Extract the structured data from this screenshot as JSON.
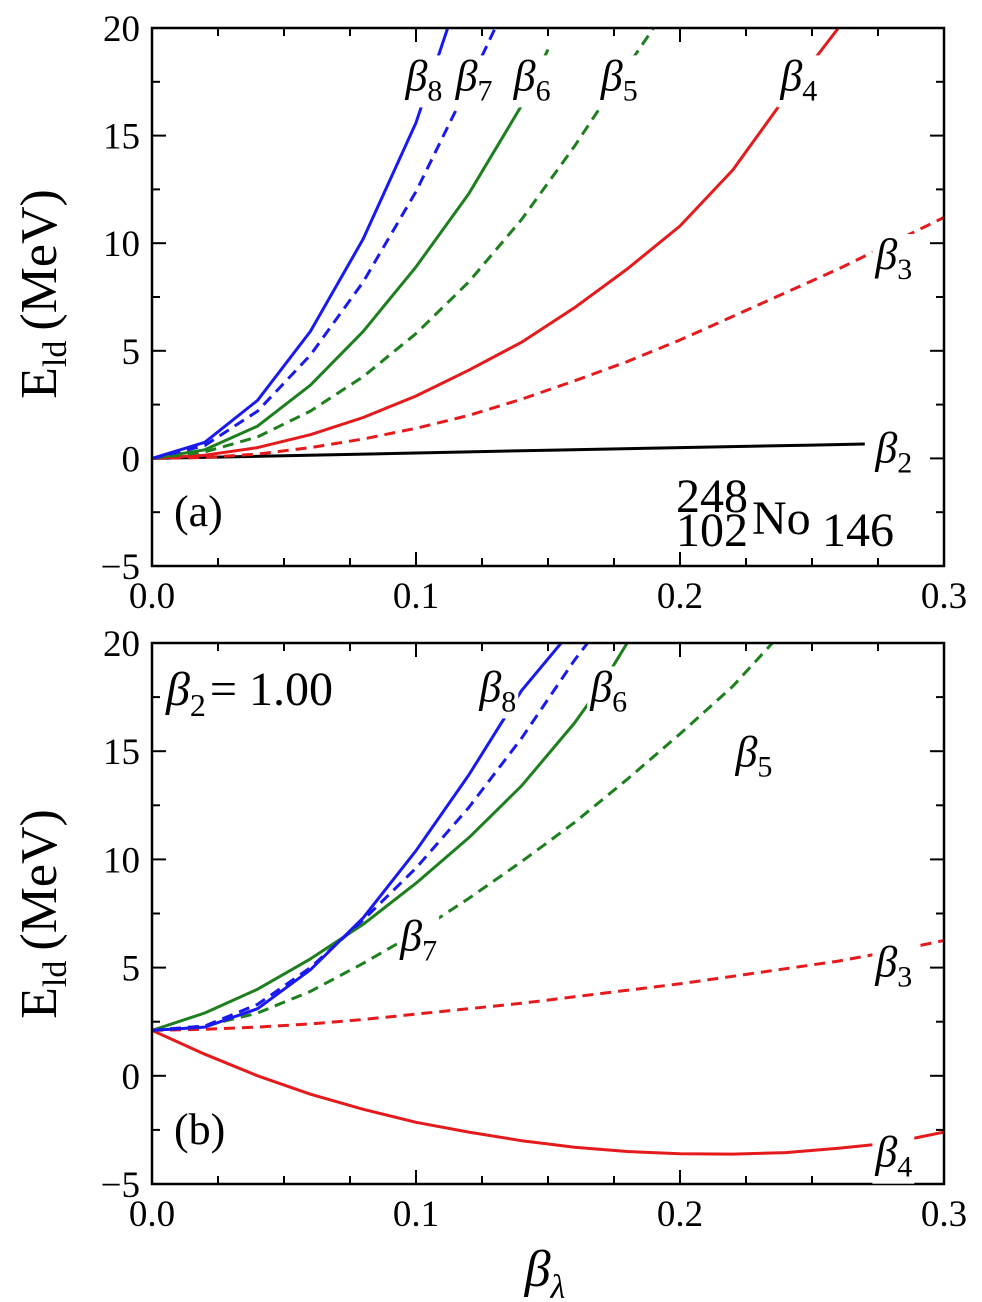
{
  "figure": {
    "xlabel_symbol": "β",
    "xlabel_sub": "λ",
    "ylabel_main": "E",
    "ylabel_sub": "ld",
    "ylabel_unit": "(MeV)"
  },
  "colors": {
    "beta2": "#000000",
    "beta3": "#e41a1c",
    "beta4": "#e41a1c",
    "beta5": "#1e7f1e",
    "beta6": "#1e7f1e",
    "beta7": "#1a1aee",
    "beta8": "#1a1aee"
  },
  "chart_data": [
    {
      "type": "line",
      "panel_label": "(a)",
      "nucleus": {
        "mass": "248",
        "charge": "102",
        "symbol": "No",
        "neutrons": "146"
      },
      "xlim": [
        0.0,
        0.3
      ],
      "ylim": [
        -5,
        20
      ],
      "xticks": [
        "0.0",
        "0.1",
        "0.2",
        "0.3"
      ],
      "yticks": [
        "−5",
        "0",
        "5",
        "10",
        "15",
        "20"
      ],
      "xtick_values": [
        0.0,
        0.1,
        0.2,
        0.3
      ],
      "ytick_values": [
        -5,
        0,
        5,
        10,
        15,
        20
      ],
      "series": [
        {
          "name": "β2",
          "sub": "2",
          "style": "solid",
          "color_key": "beta2",
          "x": [
            0,
            0.05,
            0.1,
            0.15,
            0.2,
            0.25,
            0.27
          ],
          "y": [
            0,
            0.12,
            0.25,
            0.38,
            0.5,
            0.62,
            0.67
          ]
        },
        {
          "name": "β3",
          "sub": "3",
          "style": "dashed",
          "color_key": "beta3",
          "x": [
            0,
            0.02,
            0.04,
            0.06,
            0.08,
            0.1,
            0.12,
            0.14,
            0.16,
            0.18,
            0.2,
            0.22,
            0.24,
            0.26,
            0.28,
            0.3
          ],
          "y": [
            0,
            0.04,
            0.2,
            0.5,
            0.9,
            1.4,
            2.0,
            2.75,
            3.6,
            4.5,
            5.5,
            6.6,
            7.7,
            8.8,
            10.0,
            11.2
          ]
        },
        {
          "name": "β4",
          "sub": "4",
          "style": "solid",
          "color_key": "beta4",
          "x": [
            0,
            0.02,
            0.04,
            0.06,
            0.08,
            0.1,
            0.12,
            0.14,
            0.16,
            0.18,
            0.2,
            0.22,
            0.24,
            0.26
          ],
          "y": [
            0,
            0.15,
            0.5,
            1.1,
            1.9,
            2.9,
            4.1,
            5.4,
            7.0,
            8.8,
            10.8,
            13.4,
            16.8,
            20.0
          ]
        },
        {
          "name": "β5",
          "sub": "5",
          "style": "dashed",
          "color_key": "beta5",
          "x": [
            0,
            0.02,
            0.04,
            0.06,
            0.08,
            0.1,
            0.12,
            0.14,
            0.16,
            0.18,
            0.19
          ],
          "y": [
            0,
            0.3,
            1.0,
            2.2,
            3.8,
            5.8,
            8.2,
            11.1,
            14.5,
            18.2,
            20.0
          ]
        },
        {
          "name": "β6",
          "sub": "6",
          "style": "solid",
          "color_key": "beta6",
          "x": [
            0,
            0.02,
            0.04,
            0.06,
            0.08,
            0.1,
            0.12,
            0.14,
            0.15
          ],
          "y": [
            0,
            0.4,
            1.5,
            3.4,
            5.9,
            8.9,
            12.3,
            16.4,
            19.0
          ]
        },
        {
          "name": "β7",
          "sub": "7",
          "style": "dashed",
          "color_key": "beta7",
          "x": [
            0,
            0.02,
            0.04,
            0.06,
            0.08,
            0.1,
            0.12,
            0.13
          ],
          "y": [
            0,
            0.6,
            2.2,
            4.8,
            8.2,
            12.4,
            17.4,
            20.0
          ]
        },
        {
          "name": "β8",
          "sub": "8",
          "style": "solid",
          "color_key": "beta8",
          "x": [
            0,
            0.02,
            0.04,
            0.06,
            0.08,
            0.1,
            0.112
          ],
          "y": [
            0,
            0.75,
            2.7,
            5.9,
            10.2,
            15.6,
            20.0
          ]
        }
      ],
      "labels": [
        {
          "text": "β",
          "sub": "8",
          "x": 0.096,
          "y": 17.1
        },
        {
          "text": "β",
          "sub": "7",
          "x": 0.115,
          "y": 17.1
        },
        {
          "text": "β",
          "sub": "6",
          "x": 0.137,
          "y": 17.1
        },
        {
          "text": "β",
          "sub": "5",
          "x": 0.17,
          "y": 17.1
        },
        {
          "text": "β",
          "sub": "4",
          "x": 0.238,
          "y": 17.1
        },
        {
          "text": "β",
          "sub": "3",
          "x": 0.274,
          "y": 8.8
        },
        {
          "text": "β",
          "sub": "2",
          "x": 0.274,
          "y": -0.2
        }
      ]
    },
    {
      "type": "line",
      "panel_label": "(b)",
      "annotation": "β2 = 1.00",
      "annotation_sub": "2",
      "annotation_value": "= 1.00",
      "xlim": [
        0.0,
        0.3
      ],
      "ylim": [
        -5,
        20
      ],
      "xticks": [
        "0.0",
        "0.1",
        "0.2",
        "0.3"
      ],
      "yticks": [
        "−5",
        "0",
        "5",
        "10",
        "15",
        "20"
      ],
      "xtick_values": [
        0.0,
        0.1,
        0.2,
        0.3
      ],
      "ytick_values": [
        -5,
        0,
        5,
        10,
        15,
        20
      ],
      "series": [
        {
          "name": "β3",
          "sub": "3",
          "style": "dashed",
          "color_key": "beta3",
          "x": [
            0,
            0.02,
            0.04,
            0.06,
            0.08,
            0.1,
            0.12,
            0.14,
            0.16,
            0.18,
            0.2,
            0.22,
            0.24,
            0.26,
            0.28,
            0.3
          ],
          "y": [
            2.1,
            2.15,
            2.25,
            2.4,
            2.6,
            2.85,
            3.1,
            3.35,
            3.65,
            3.95,
            4.25,
            4.6,
            4.95,
            5.3,
            5.75,
            6.25
          ]
        },
        {
          "name": "β4",
          "sub": "4",
          "style": "solid",
          "color_key": "beta4",
          "x": [
            0,
            0.02,
            0.04,
            0.06,
            0.08,
            0.1,
            0.12,
            0.14,
            0.16,
            0.18,
            0.2,
            0.22,
            0.24,
            0.26,
            0.28,
            0.3
          ],
          "y": [
            2.1,
            1.0,
            0.0,
            -0.85,
            -1.55,
            -2.15,
            -2.6,
            -3.0,
            -3.3,
            -3.5,
            -3.6,
            -3.62,
            -3.55,
            -3.35,
            -3.1,
            -2.6
          ]
        },
        {
          "name": "β5",
          "sub": "5",
          "style": "dashed",
          "color_key": "beta5",
          "x": [
            0,
            0.02,
            0.04,
            0.06,
            0.08,
            0.1,
            0.12,
            0.14,
            0.16,
            0.18,
            0.2,
            0.22,
            0.235
          ],
          "y": [
            2.1,
            2.3,
            2.9,
            3.9,
            5.2,
            6.6,
            8.2,
            9.9,
            11.7,
            13.7,
            15.8,
            18.0,
            20.0
          ]
        },
        {
          "name": "β6",
          "sub": "6",
          "style": "solid",
          "color_key": "beta6",
          "x": [
            0,
            0.02,
            0.04,
            0.06,
            0.08,
            0.1,
            0.12,
            0.14,
            0.16,
            0.17,
            0.18
          ],
          "y": [
            2.1,
            2.9,
            4.0,
            5.4,
            7.0,
            8.9,
            11.0,
            13.4,
            16.3,
            18.0,
            20.0
          ]
        },
        {
          "name": "β7",
          "sub": "7",
          "style": "dashed",
          "color_key": "beta7",
          "x": [
            0,
            0.02,
            0.04,
            0.06,
            0.08,
            0.1,
            0.12,
            0.14,
            0.16,
            0.165
          ],
          "y": [
            2.1,
            2.3,
            3.3,
            5.0,
            7.2,
            9.6,
            12.4,
            15.6,
            19.2,
            20.0
          ]
        },
        {
          "name": "β8",
          "sub": "8",
          "style": "solid",
          "color_key": "beta8",
          "x": [
            0,
            0.02,
            0.04,
            0.06,
            0.08,
            0.1,
            0.12,
            0.14,
            0.155
          ],
          "y": [
            2.1,
            2.25,
            3.1,
            4.9,
            7.3,
            10.4,
            13.9,
            17.8,
            20.0
          ]
        }
      ],
      "labels": [
        {
          "text": "β",
          "sub": "8",
          "x": 0.124,
          "y": 17.3
        },
        {
          "text": "β",
          "sub": "6",
          "x": 0.166,
          "y": 17.3
        },
        {
          "text": "β",
          "sub": "5",
          "x": 0.221,
          "y": 14.3
        },
        {
          "text": "β",
          "sub": "7",
          "x": 0.094,
          "y": 5.8
        },
        {
          "text": "β",
          "sub": "3",
          "x": 0.274,
          "y": 4.6
        },
        {
          "text": "β",
          "sub": "4",
          "x": 0.274,
          "y": -4.2
        }
      ]
    }
  ]
}
